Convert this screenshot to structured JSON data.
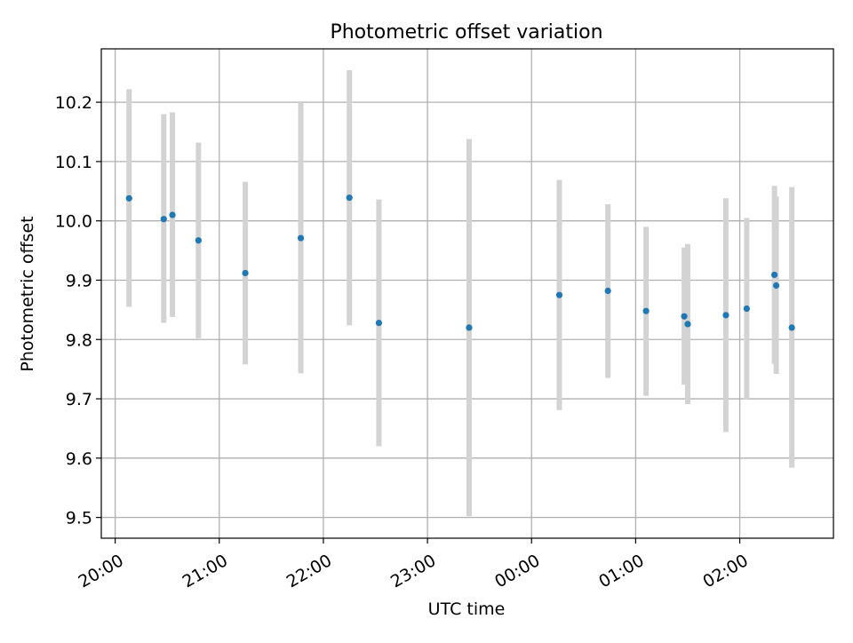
{
  "chart_data": {
    "type": "scatter",
    "title": "Photometric offset variation",
    "xlabel": "UTC time",
    "ylabel": "Photometric offset",
    "x_ticks": [
      "20:00",
      "21:00",
      "22:00",
      "23:00",
      "00:00",
      "01:00",
      "02:00"
    ],
    "y_ticks": [
      "9.5",
      "9.6",
      "9.7",
      "9.8",
      "9.9",
      "10.0",
      "10.1",
      "10.2"
    ],
    "x_range": [
      "19:52",
      "02:54"
    ],
    "ylim": [
      9.465,
      10.29
    ],
    "grid": true,
    "legend": "none",
    "colors": {
      "points": "#1f77b4",
      "error_bars": "#d3d3d3",
      "grid": "#b0b0b0"
    },
    "points": [
      {
        "time": "20:08",
        "y": 10.038,
        "err_low": 9.855,
        "err_high": 10.222
      },
      {
        "time": "20:28",
        "y": 10.003,
        "err_low": 9.828,
        "err_high": 10.18
      },
      {
        "time": "20:33",
        "y": 10.01,
        "err_low": 9.838,
        "err_high": 10.183
      },
      {
        "time": "20:48",
        "y": 9.967,
        "err_low": 9.802,
        "err_high": 10.132
      },
      {
        "time": "21:15",
        "y": 9.912,
        "err_low": 9.758,
        "err_high": 10.066
      },
      {
        "time": "21:47",
        "y": 9.971,
        "err_low": 9.743,
        "err_high": 10.2
      },
      {
        "time": "22:15",
        "y": 10.039,
        "err_low": 9.824,
        "err_high": 10.254
      },
      {
        "time": "22:32",
        "y": 9.828,
        "err_low": 9.62,
        "err_high": 10.036
      },
      {
        "time": "23:24",
        "y": 9.82,
        "err_low": 9.502,
        "err_high": 10.138
      },
      {
        "time": "00:16",
        "y": 9.875,
        "err_low": 9.681,
        "err_high": 10.069
      },
      {
        "time": "00:44",
        "y": 9.882,
        "err_low": 9.735,
        "err_high": 10.028
      },
      {
        "time": "01:06",
        "y": 9.848,
        "err_low": 9.705,
        "err_high": 9.99
      },
      {
        "time": "01:28",
        "y": 9.839,
        "err_low": 9.724,
        "err_high": 9.955
      },
      {
        "time": "01:30",
        "y": 9.826,
        "err_low": 9.691,
        "err_high": 9.961
      },
      {
        "time": "01:52",
        "y": 9.841,
        "err_low": 9.644,
        "err_high": 10.038
      },
      {
        "time": "02:04",
        "y": 9.852,
        "err_low": 9.699,
        "err_high": 10.005
      },
      {
        "time": "02:20",
        "y": 9.909,
        "err_low": 9.759,
        "err_high": 10.059
      },
      {
        "time": "02:21",
        "y": 9.891,
        "err_low": 9.742,
        "err_high": 10.041
      },
      {
        "time": "02:30",
        "y": 9.82,
        "err_low": 9.584,
        "err_high": 10.057
      }
    ]
  }
}
